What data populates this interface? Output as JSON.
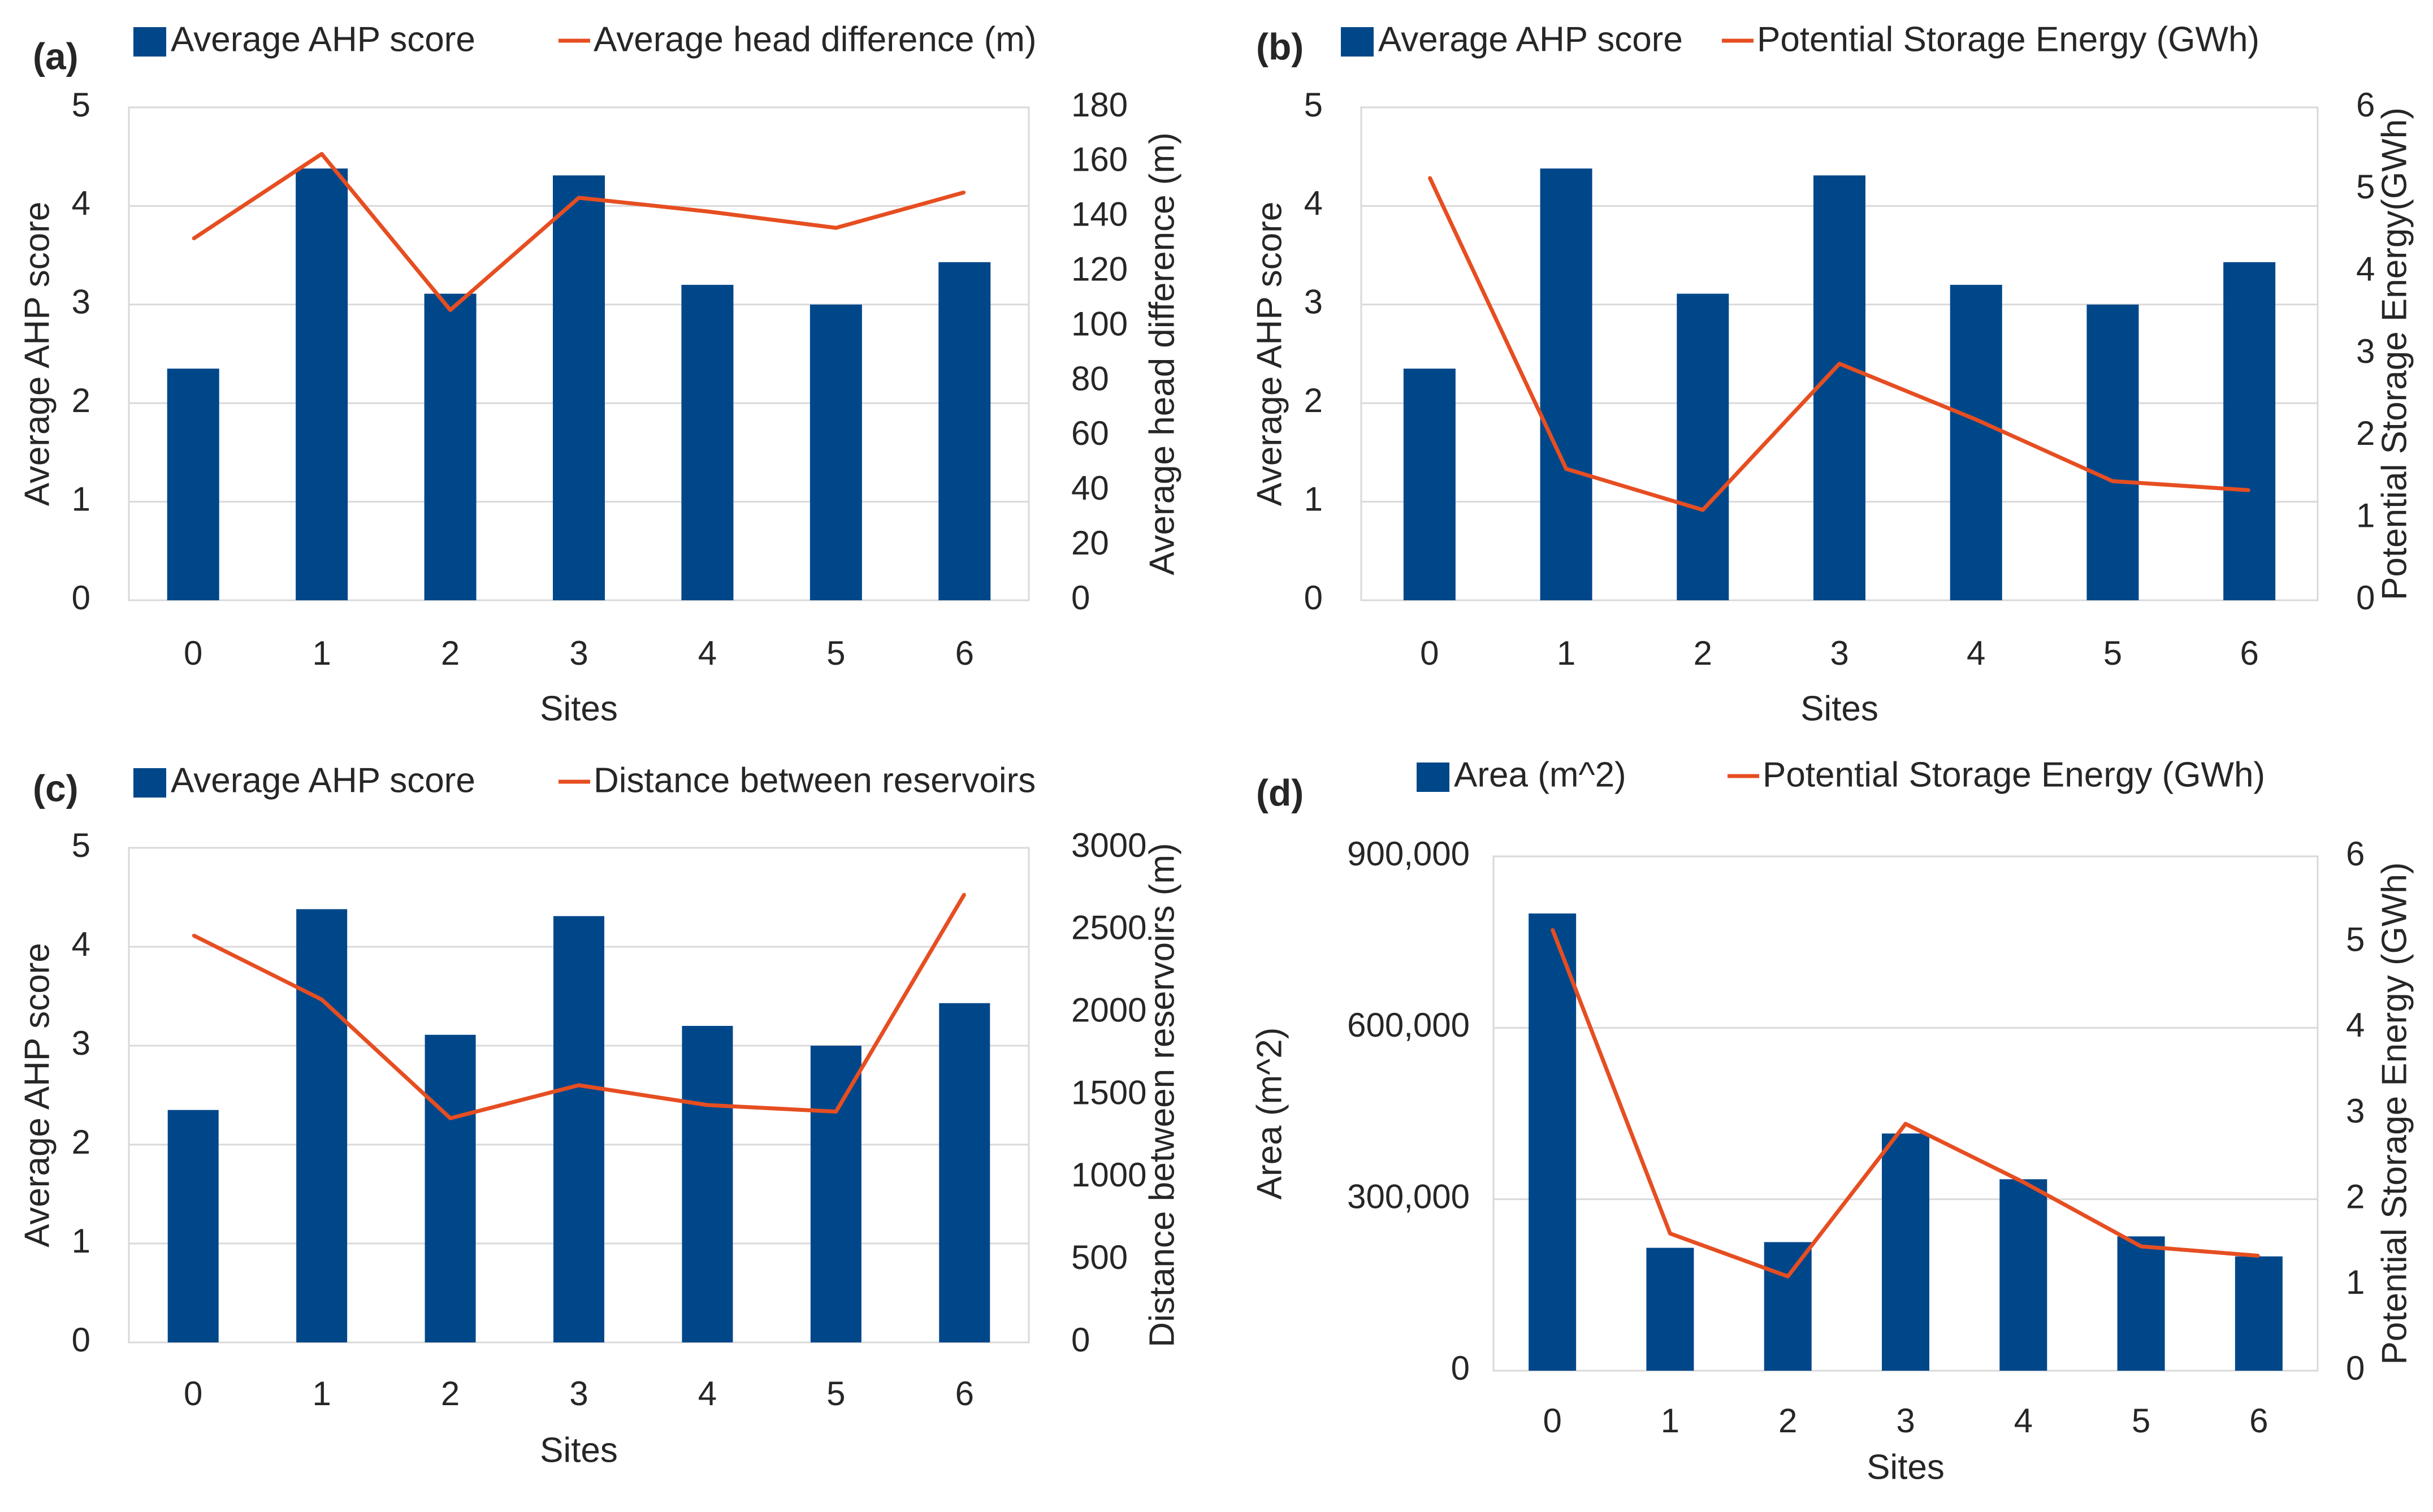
{
  "chart_data": [
    {
      "panel": "(a)",
      "type": "bar+line",
      "categories": [
        "0",
        "1",
        "2",
        "3",
        "4",
        "5",
        "6"
      ],
      "xlabel": "Sites",
      "bar": {
        "name": "Average AHP score",
        "values": [
          2.35,
          4.38,
          3.11,
          4.31,
          3.2,
          3.0,
          3.43
        ],
        "color": "#00478a"
      },
      "line": {
        "name": "Average head difference (m)",
        "values": [
          132,
          163,
          106,
          147,
          142,
          136,
          149
        ],
        "color": "#e64e21"
      },
      "ylabel": "Average AHP score",
      "ylim": [
        0,
        5
      ],
      "yticks": [
        "0",
        "1",
        "2",
        "3",
        "4",
        "5"
      ],
      "y2label": "Average head difference (m)",
      "y2lim": [
        0,
        180
      ],
      "y2ticks": [
        "0",
        "20",
        "40",
        "60",
        "80",
        "100",
        "120",
        "140",
        "160",
        "180"
      ]
    },
    {
      "panel": "(b)",
      "type": "bar+line",
      "categories": [
        "0",
        "1",
        "2",
        "3",
        "4",
        "5",
        "6"
      ],
      "xlabel": "Sites",
      "bar": {
        "name": "Average AHP score",
        "values": [
          2.35,
          4.38,
          3.11,
          4.31,
          3.2,
          3.0,
          3.43
        ],
        "color": "#00478a"
      },
      "line": {
        "name": "Potential Storage Energy (GWh)",
        "values": [
          5.15,
          1.6,
          1.1,
          2.88,
          2.2,
          1.45,
          1.34
        ],
        "color": "#e64e21"
      },
      "ylabel": "Average AHP score",
      "ylim": [
        0,
        5
      ],
      "yticks": [
        "0",
        "1",
        "2",
        "3",
        "4",
        "5"
      ],
      "y2label": "Potential Storage Energy(GWh)",
      "y2lim": [
        0,
        6
      ],
      "y2ticks": [
        "0",
        "1",
        "2",
        "3",
        "4",
        "5",
        "6"
      ]
    },
    {
      "panel": "(c)",
      "type": "bar+line",
      "categories": [
        "0",
        "1",
        "2",
        "3",
        "4",
        "5",
        "6"
      ],
      "xlabel": "Sites",
      "bar": {
        "name": "Average AHP score",
        "values": [
          2.35,
          4.38,
          3.11,
          4.31,
          3.2,
          3.0,
          3.43
        ],
        "color": "#00478a"
      },
      "line": {
        "name": "Distance between reservoirs",
        "values": [
          2470,
          2080,
          1360,
          1560,
          1440,
          1400,
          2720
        ],
        "color": "#e64e21"
      },
      "ylabel": "Average AHP score",
      "ylim": [
        0,
        5
      ],
      "yticks": [
        "0",
        "1",
        "2",
        "3",
        "4",
        "5"
      ],
      "y2label": "Distance between reservoirs (m)",
      "y2lim": [
        0,
        3000
      ],
      "y2ticks": [
        "0",
        "500",
        "1000",
        "1500",
        "2000",
        "2500",
        "3000"
      ]
    },
    {
      "panel": "(d)",
      "type": "bar+line",
      "categories": [
        "0",
        "1",
        "2",
        "3",
        "4",
        "5",
        "6"
      ],
      "xlabel": "Sites",
      "bar": {
        "name": "Area (m^2)",
        "values": [
          800000,
          215000,
          225000,
          415000,
          335000,
          235000,
          200000
        ],
        "color": "#00478a"
      },
      "line": {
        "name": "Potential Storage Energy (GWh)",
        "values": [
          5.15,
          1.6,
          1.1,
          2.88,
          2.2,
          1.45,
          1.34
        ],
        "color": "#e64e21"
      },
      "ylabel": "Area (m^2)",
      "ylim": [
        0,
        900000
      ],
      "yticks": [
        "0",
        "300,000",
        "600,000",
        "900,000"
      ],
      "y2label": "Potential Storage Energy (GWh)",
      "y2lim": [
        0,
        6
      ],
      "y2ticks": [
        "0",
        "1",
        "2",
        "3",
        "4",
        "5",
        "6"
      ]
    }
  ]
}
